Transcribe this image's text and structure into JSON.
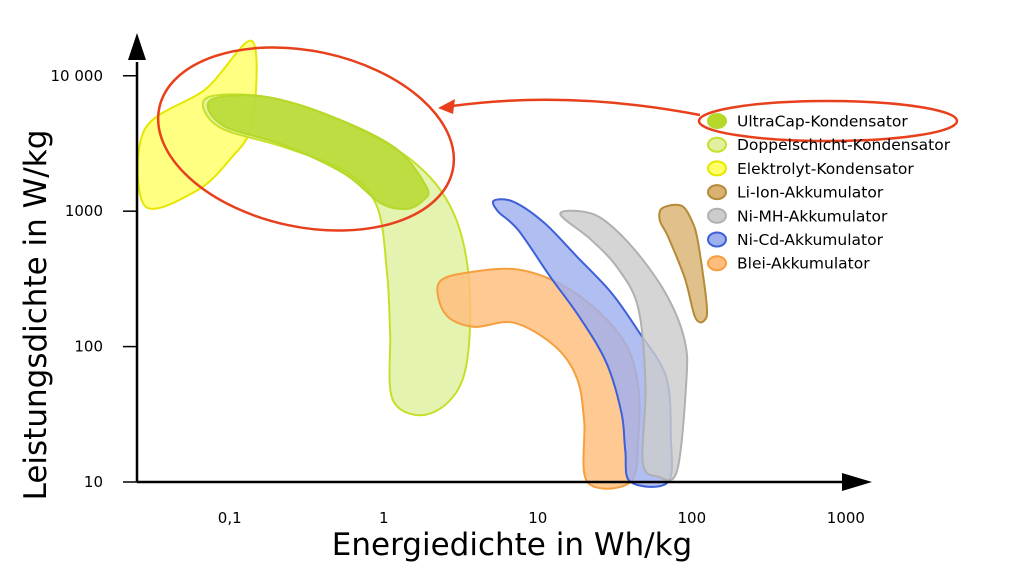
{
  "chart_data": {
    "type": "area",
    "title": "",
    "xlabel": "Energiedichte in Wh/kg",
    "ylabel": "Leistungsdichte in W/kg",
    "x_scale": "log",
    "y_scale": "log",
    "xlim": [
      0.025,
      1500
    ],
    "ylim": [
      10,
      20000
    ],
    "x_ticks": [
      0.1,
      1,
      10,
      100,
      1000
    ],
    "x_tick_labels": [
      "0,1",
      "1",
      "10",
      "100",
      "1000"
    ],
    "y_ticks": [
      10,
      100,
      1000,
      10000
    ],
    "y_tick_labels": [
      "10",
      "100",
      "1000",
      "10 000"
    ],
    "grid": false,
    "legend_position": "right",
    "series": [
      {
        "name": "Elektrolyt-Kondensator",
        "fill": "#ffff66",
        "stroke": "#e6e600",
        "polygon": [
          [
            0.028,
            1100
          ],
          [
            0.028,
            4000
          ],
          [
            0.07,
            8000
          ],
          [
            0.14,
            18000
          ],
          [
            0.14,
            4500
          ],
          [
            0.1,
            2400
          ],
          [
            0.06,
            1400
          ],
          [
            0.028,
            1100
          ]
        ]
      },
      {
        "name": "Doppelschicht-Kondensator",
        "fill": "#dff0a0",
        "stroke": "#c6e02a",
        "polygon": [
          [
            0.07,
            6800
          ],
          [
            0.17,
            7000
          ],
          [
            0.5,
            4800
          ],
          [
            1.5,
            2400
          ],
          [
            2.8,
            1000
          ],
          [
            3.6,
            280
          ],
          [
            3.3,
            60
          ],
          [
            2,
            32
          ],
          [
            1.15,
            40
          ],
          [
            1.1,
            130
          ],
          [
            1.05,
            350
          ],
          [
            0.9,
            1100
          ],
          [
            0.55,
            2000
          ],
          [
            0.22,
            3000
          ],
          [
            0.085,
            4200
          ],
          [
            0.07,
            6800
          ]
        ]
      },
      {
        "name": "UltraCap-Kondensator",
        "fill": "#b5d82a",
        "stroke": "#b5d82a",
        "polygon": [
          [
            0.075,
            6600
          ],
          [
            0.17,
            7000
          ],
          [
            0.48,
            4900
          ],
          [
            1.2,
            2900
          ],
          [
            1.9,
            1500
          ],
          [
            1.8,
            1200
          ],
          [
            1.4,
            1040
          ],
          [
            0.95,
            1150
          ],
          [
            0.55,
            1900
          ],
          [
            0.22,
            3100
          ],
          [
            0.09,
            4300
          ],
          [
            0.075,
            6600
          ]
        ]
      },
      {
        "name": "Blei-Akkumulator",
        "fill": "#ffbd7d",
        "stroke": "#f59f3d",
        "polygon": [
          [
            2.3,
            300
          ],
          [
            4,
            360
          ],
          [
            7.5,
            370
          ],
          [
            14,
            290
          ],
          [
            25,
            180
          ],
          [
            38,
            100
          ],
          [
            45,
            50
          ],
          [
            45,
            22
          ],
          [
            40,
            10
          ],
          [
            21,
            10
          ],
          [
            20,
            28
          ],
          [
            18,
            58
          ],
          [
            13,
            100
          ],
          [
            7,
            150
          ],
          [
            3.8,
            140
          ],
          [
            2.5,
            175
          ],
          [
            2.3,
            300
          ]
        ]
      },
      {
        "name": "Ni-Cd-Akkumulator",
        "fill": "#9fb0ee",
        "stroke": "#3d5fd8",
        "polygon": [
          [
            5.2,
            1200
          ],
          [
            7,
            1170
          ],
          [
            11,
            820
          ],
          [
            18,
            460
          ],
          [
            30,
            250
          ],
          [
            45,
            130
          ],
          [
            68,
            60
          ],
          [
            73,
            22
          ],
          [
            70,
            10
          ],
          [
            40,
            10
          ],
          [
            37,
            17
          ],
          [
            35,
            32
          ],
          [
            28,
            75
          ],
          [
            19,
            160
          ],
          [
            12,
            330
          ],
          [
            7.5,
            720
          ],
          [
            5.5,
            1000
          ],
          [
            5.2,
            1200
          ]
        ]
      },
      {
        "name": "Ni-MH-Akkumulator",
        "fill": "#cccccc",
        "stroke": "#b0b0b0",
        "polygon": [
          [
            14,
            950
          ],
          [
            20,
            990
          ],
          [
            28,
            830
          ],
          [
            45,
            480
          ],
          [
            70,
            230
          ],
          [
            90,
            110
          ],
          [
            92,
            55
          ],
          [
            80,
            12
          ],
          [
            60,
            11
          ],
          [
            48,
            14
          ],
          [
            50,
            50
          ],
          [
            45,
            190
          ],
          [
            33,
            380
          ],
          [
            22,
            620
          ],
          [
            14,
            950
          ]
        ]
      },
      {
        "name": "Li-Ion-Akkumulator",
        "fill": "#d9b271",
        "stroke": "#b58a38",
        "polygon": [
          [
            64,
            1050
          ],
          [
            85,
            1100
          ],
          [
            100,
            850
          ],
          [
            110,
            580
          ],
          [
            125,
            200
          ],
          [
            120,
            155
          ],
          [
            105,
            165
          ],
          [
            90,
            320
          ],
          [
            70,
            650
          ],
          [
            62,
            850
          ],
          [
            64,
            1050
          ]
        ]
      }
    ],
    "legend_order": [
      "UltraCap-Kondensator",
      "Doppelschicht-Kondensator",
      "Elektrolyt-Kondensator",
      "Li-Ion-Akkumulator",
      "Ni-MH-Akkumulator",
      "Ni-Cd-Akkumulator",
      "Blei-Akkumulator"
    ],
    "highlight_color": "#e8401c"
  }
}
